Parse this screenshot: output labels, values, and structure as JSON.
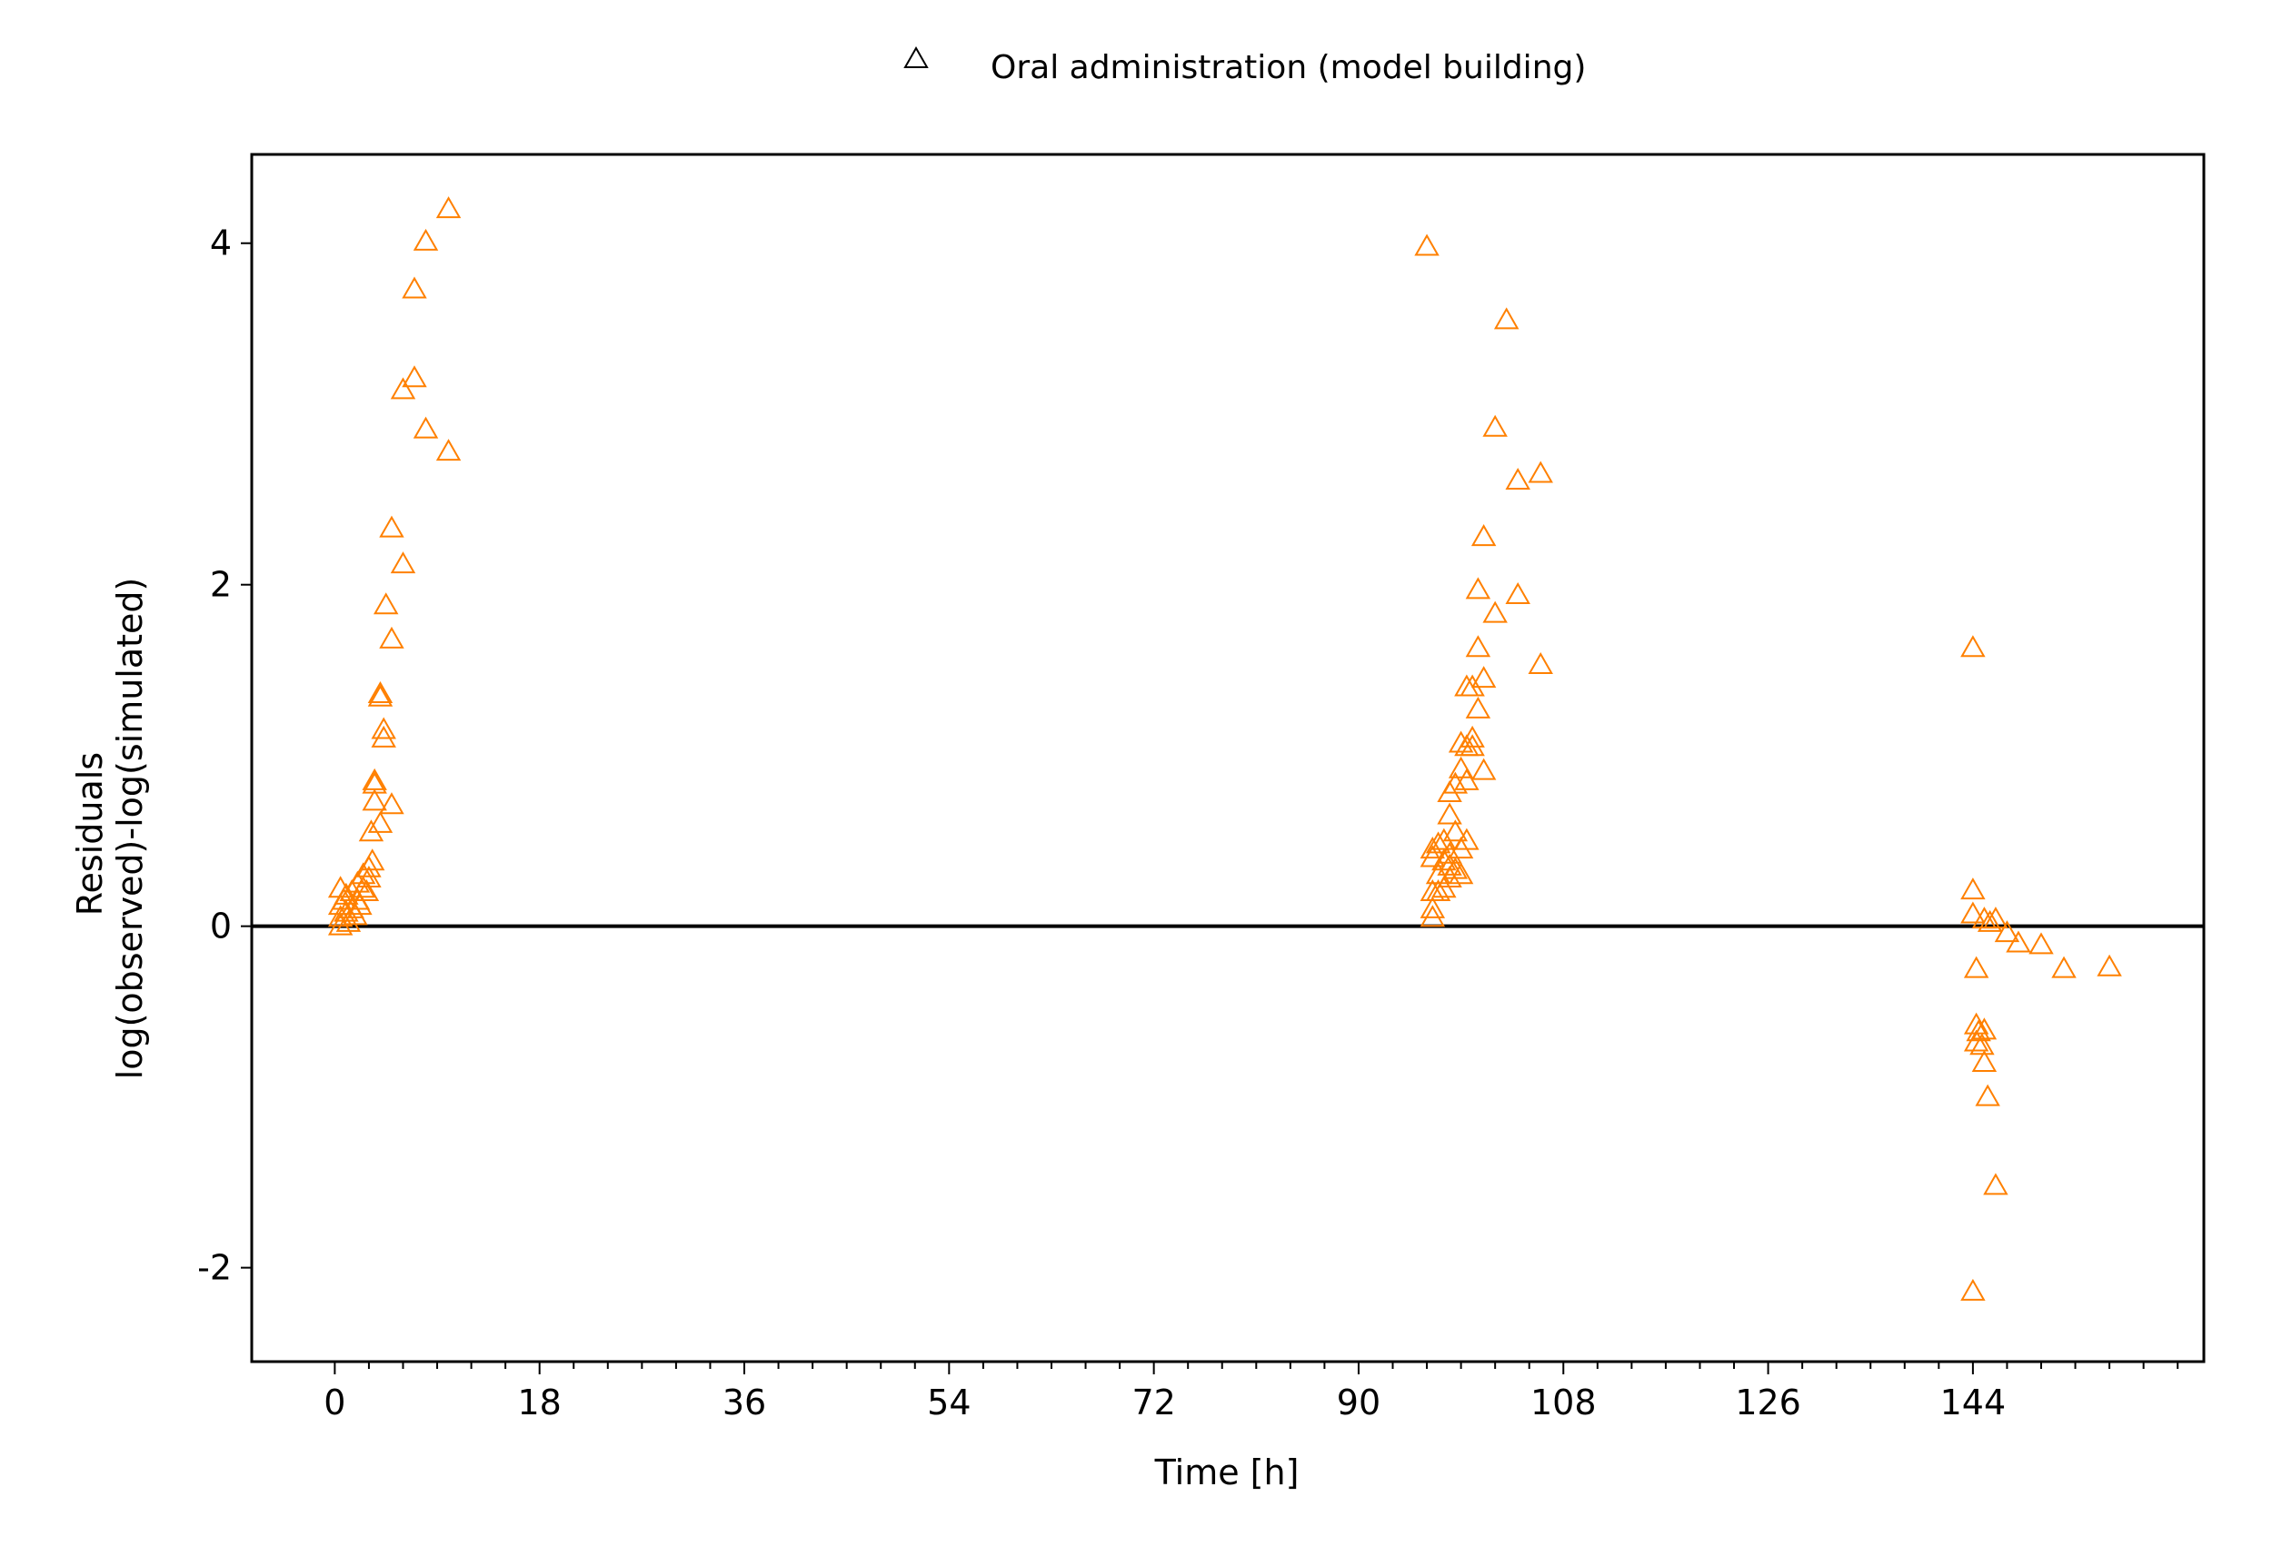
{
  "chart_data": {
    "type": "scatter",
    "title": "",
    "xlabel": "Time [h]",
    "ylabel_lines": [
      "Residuals",
      "log(observed)-log(simulated)"
    ],
    "xlim": [
      -7.3,
      164.3
    ],
    "ylim": [
      -2.55,
      4.52
    ],
    "x_ticks": [
      0,
      18,
      36,
      54,
      72,
      90,
      108,
      126,
      144
    ],
    "x_tick_labels": [
      "0",
      "18",
      "36",
      "54",
      "72",
      "90",
      "108",
      "126",
      "144"
    ],
    "x_minor_step": 3,
    "y_ticks": [
      -2,
      0,
      2,
      4
    ],
    "y_tick_labels": [
      "-2",
      "0",
      "2",
      "4"
    ],
    "reference_line_y": 0,
    "grid": false,
    "legend_position": "top-center",
    "colors": {
      "marker": "#ff8000",
      "legend_marker": "#000000",
      "axis": "#000000"
    },
    "series": [
      {
        "name": "Oral administration (model building)",
        "marker": "open-triangle",
        "points": [
          [
            0.5,
            0.0
          ],
          [
            0.5,
            0.05
          ],
          [
            0.5,
            0.12
          ],
          [
            0.5,
            0.22
          ],
          [
            0.8,
            0.15
          ],
          [
            1.0,
            0.08
          ],
          [
            1.0,
            0.18
          ],
          [
            1.2,
            0.02
          ],
          [
            1.5,
            0.1
          ],
          [
            1.5,
            0.2
          ],
          [
            1.8,
            0.06
          ],
          [
            2.0,
            0.15
          ],
          [
            2.0,
            0.25
          ],
          [
            2.2,
            0.12
          ],
          [
            2.5,
            0.22
          ],
          [
            2.5,
            0.3
          ],
          [
            2.8,
            0.2
          ],
          [
            3.0,
            0.28
          ],
          [
            3.0,
            0.34
          ],
          [
            3.2,
            0.55
          ],
          [
            3.3,
            0.38
          ],
          [
            3.5,
            0.85
          ],
          [
            3.5,
            0.83
          ],
          [
            3.5,
            0.73
          ],
          [
            4.0,
            1.36
          ],
          [
            4.0,
            1.34
          ],
          [
            4.0,
            0.6
          ],
          [
            4.3,
            1.15
          ],
          [
            4.3,
            1.1
          ],
          [
            4.5,
            1.88
          ],
          [
            5.0,
            2.33
          ],
          [
            5.0,
            1.68
          ],
          [
            5.0,
            0.71
          ],
          [
            6.0,
            2.12
          ],
          [
            6.0,
            3.14
          ],
          [
            7.0,
            3.21
          ],
          [
            7.0,
            3.73
          ],
          [
            8.0,
            4.01
          ],
          [
            8.0,
            2.91
          ],
          [
            10.0,
            4.2
          ],
          [
            10.0,
            2.78
          ],
          [
            96.0,
            3.98
          ],
          [
            96.5,
            0.05
          ],
          [
            96.5,
            0.1
          ],
          [
            96.5,
            0.2
          ],
          [
            96.5,
            0.4
          ],
          [
            96.5,
            0.45
          ],
          [
            97.0,
            0.2
          ],
          [
            97.0,
            0.3
          ],
          [
            97.0,
            0.48
          ],
          [
            97.5,
            0.22
          ],
          [
            97.5,
            0.38
          ],
          [
            97.5,
            0.5
          ],
          [
            98.0,
            0.28
          ],
          [
            98.0,
            0.35
          ],
          [
            98.0,
            0.42
          ],
          [
            98.0,
            0.65
          ],
          [
            98.0,
            0.78
          ],
          [
            98.5,
            0.33
          ],
          [
            98.5,
            0.55
          ],
          [
            98.5,
            0.83
          ],
          [
            99.0,
            0.3
          ],
          [
            99.0,
            0.45
          ],
          [
            99.0,
            0.92
          ],
          [
            99.0,
            1.07
          ],
          [
            99.5,
            0.5
          ],
          [
            99.5,
            0.85
          ],
          [
            99.5,
            1.05
          ],
          [
            99.5,
            1.4
          ],
          [
            100.0,
            1.1
          ],
          [
            100.0,
            1.05
          ],
          [
            100.0,
            1.4
          ],
          [
            100.5,
            1.27
          ],
          [
            100.5,
            1.63
          ],
          [
            100.5,
            1.97
          ],
          [
            101.0,
            1.45
          ],
          [
            101.0,
            2.28
          ],
          [
            101.0,
            0.91
          ],
          [
            102.0,
            2.92
          ],
          [
            102.0,
            1.83
          ],
          [
            103.0,
            3.55
          ],
          [
            104.0,
            2.61
          ],
          [
            104.0,
            1.94
          ],
          [
            106.0,
            2.65
          ],
          [
            106.0,
            1.53
          ],
          [
            144.0,
            -2.14
          ],
          [
            144.0,
            1.63
          ],
          [
            144.0,
            0.21
          ],
          [
            144.0,
            0.07
          ],
          [
            144.3,
            -0.25
          ],
          [
            144.3,
            -0.58
          ],
          [
            144.3,
            -0.68
          ],
          [
            144.5,
            -0.62
          ],
          [
            144.8,
            -0.7
          ],
          [
            145.0,
            -0.61
          ],
          [
            145.0,
            -0.8
          ],
          [
            145.0,
            0.04
          ],
          [
            145.3,
            -1.0
          ],
          [
            145.5,
            0.02
          ],
          [
            146.0,
            -1.52
          ],
          [
            146.0,
            0.04
          ],
          [
            147.0,
            -0.04
          ],
          [
            148.0,
            -0.1
          ],
          [
            150.0,
            -0.11
          ],
          [
            152.0,
            -0.25
          ],
          [
            156.0,
            -0.24
          ]
        ]
      }
    ]
  }
}
